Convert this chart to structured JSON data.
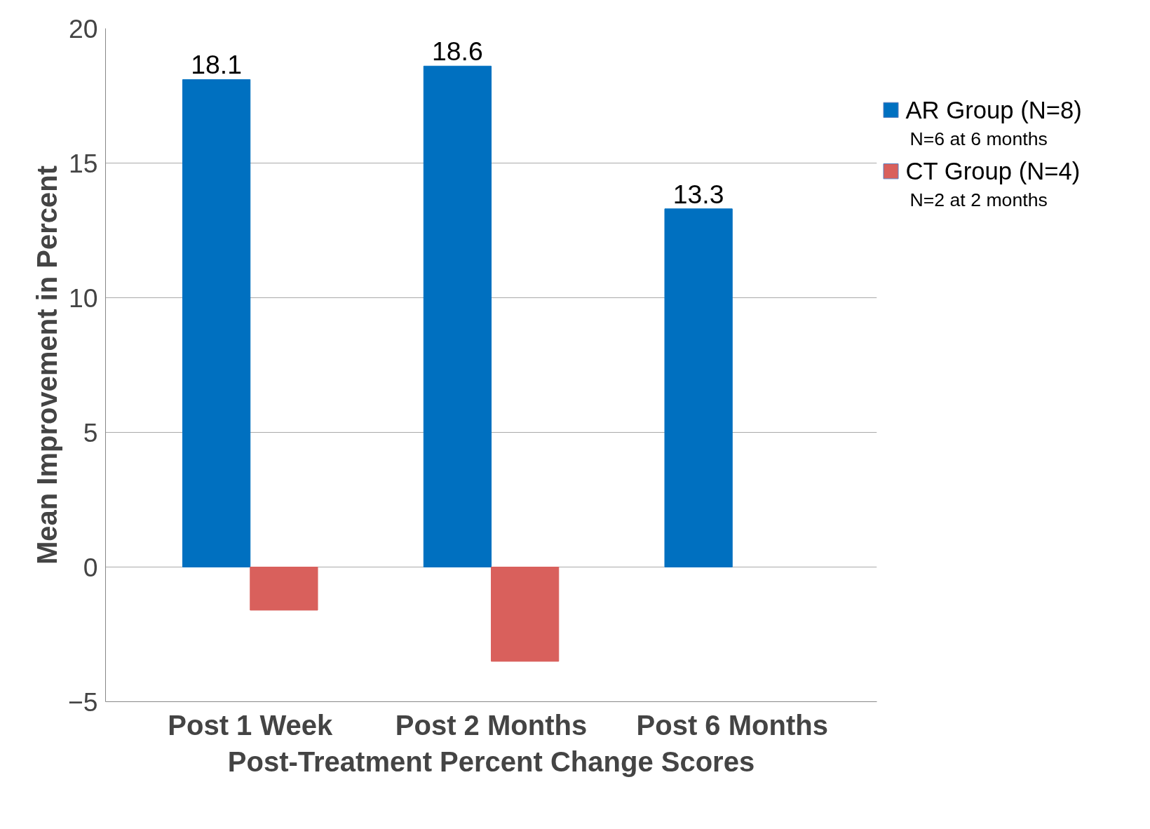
{
  "chart_data": {
    "type": "bar",
    "xlabel": "Post-Treatment Percent Change Scores",
    "ylabel": "Mean Improvement in Percent",
    "categories": [
      "Post 1 Week",
      "Post 2 Months",
      "Post 6 Months"
    ],
    "series": [
      {
        "name": "AR Group (N=8)",
        "color": "#0070c0",
        "values": [
          18.1,
          18.6,
          13.3
        ],
        "value_labels": [
          "18.1",
          "18.6",
          "13.3"
        ]
      },
      {
        "name": "CT Group (N=4)",
        "color": "#d9605c",
        "values": [
          -1.6,
          -3.5,
          null
        ]
      }
    ],
    "annotations": [
      "N=6 at 6 months",
      "N=2 at 2 months"
    ],
    "ylim": [
      -5,
      20
    ],
    "yticks": [
      -5,
      0,
      5,
      10,
      15,
      20
    ],
    "grid": "y",
    "legend": "right"
  }
}
